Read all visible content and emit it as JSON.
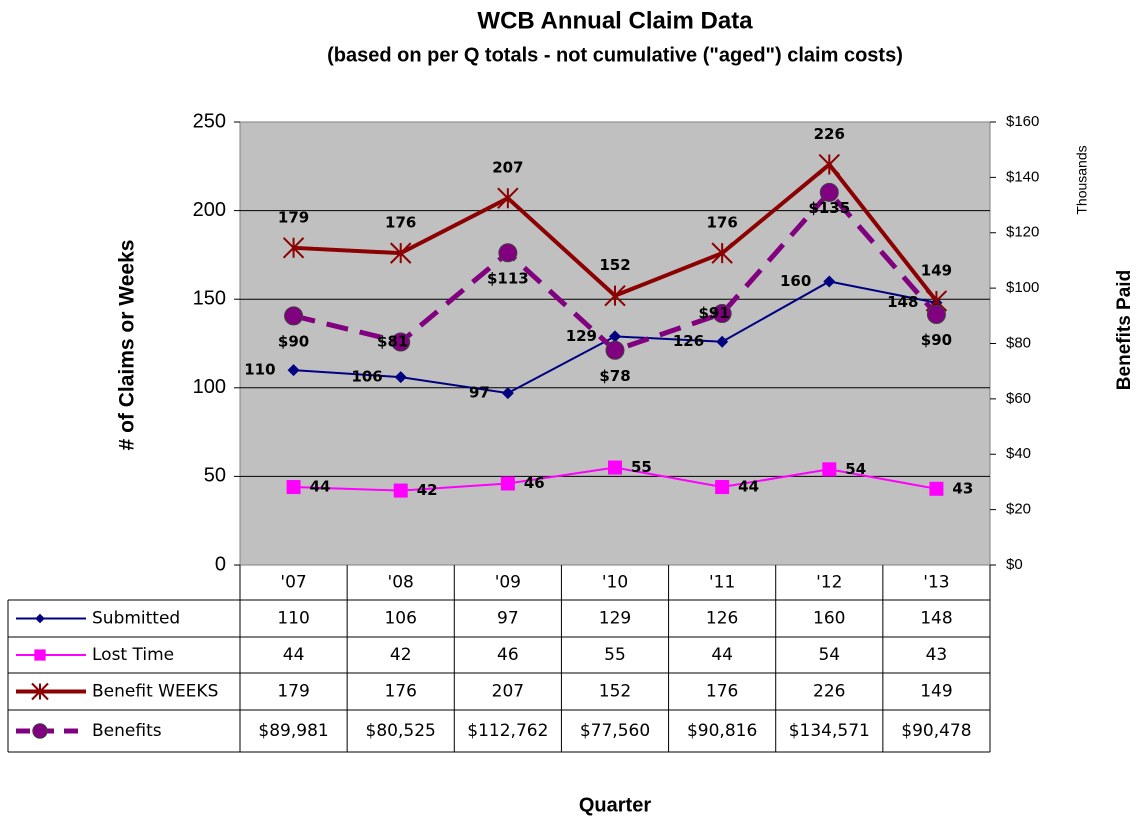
{
  "chart_data": {
    "type": "line",
    "title": "WCB Annual Claim Data",
    "subtitle": "(based on per Q totals - not cumulative (\"aged\") claim costs)",
    "x_label": "Quarter",
    "y_label": "# of Claims or Weeks",
    "y2_label": "Benefits Paid",
    "y2_unit": "Thousands",
    "categories": [
      "'07",
      "'08",
      "'09",
      "'10",
      "'11",
      "'12",
      "'13"
    ],
    "ylim": [
      0,
      250
    ],
    "yticks": [
      0,
      50,
      100,
      150,
      200,
      250
    ],
    "y2lim": [
      0,
      160000
    ],
    "y2ticks": [
      {
        "value": 0,
        "label": "$0"
      },
      {
        "value": 20000,
        "label": "$20"
      },
      {
        "value": 40000,
        "label": "$40"
      },
      {
        "value": 60000,
        "label": "$60"
      },
      {
        "value": 80000,
        "label": "$80"
      },
      {
        "value": 100000,
        "label": "$100"
      },
      {
        "value": 120000,
        "label": "$120"
      },
      {
        "value": 140000,
        "label": "$140"
      },
      {
        "value": 160000,
        "label": "$160"
      }
    ],
    "grid": true,
    "series": [
      {
        "name": "Submitted",
        "color": "#000080",
        "marker": "diamond",
        "values": [
          110,
          106,
          97,
          129,
          126,
          160,
          148
        ]
      },
      {
        "name": "Lost Time",
        "color": "#ff00ff",
        "marker": "square",
        "values": [
          44,
          42,
          46,
          55,
          44,
          54,
          43
        ]
      },
      {
        "name": "Benefit WEEKS",
        "color": "#8b0000",
        "marker": "star",
        "values": [
          179,
          176,
          207,
          152,
          176,
          226,
          149
        ]
      },
      {
        "name": "Benefits",
        "color": "#800080",
        "marker": "circle",
        "dashed": true,
        "axis": "y2",
        "values": [
          89981,
          80525,
          112762,
          77560,
          90816,
          134571,
          90478
        ],
        "value_labels": [
          "$90",
          "$81",
          "$113",
          "$78",
          "$91",
          "$135",
          "$90"
        ],
        "table_labels": [
          "$89,981",
          "$80,525",
          "$112,762",
          "$77,560",
          "$90,816",
          "$134,571",
          "$90,478"
        ]
      }
    ]
  }
}
